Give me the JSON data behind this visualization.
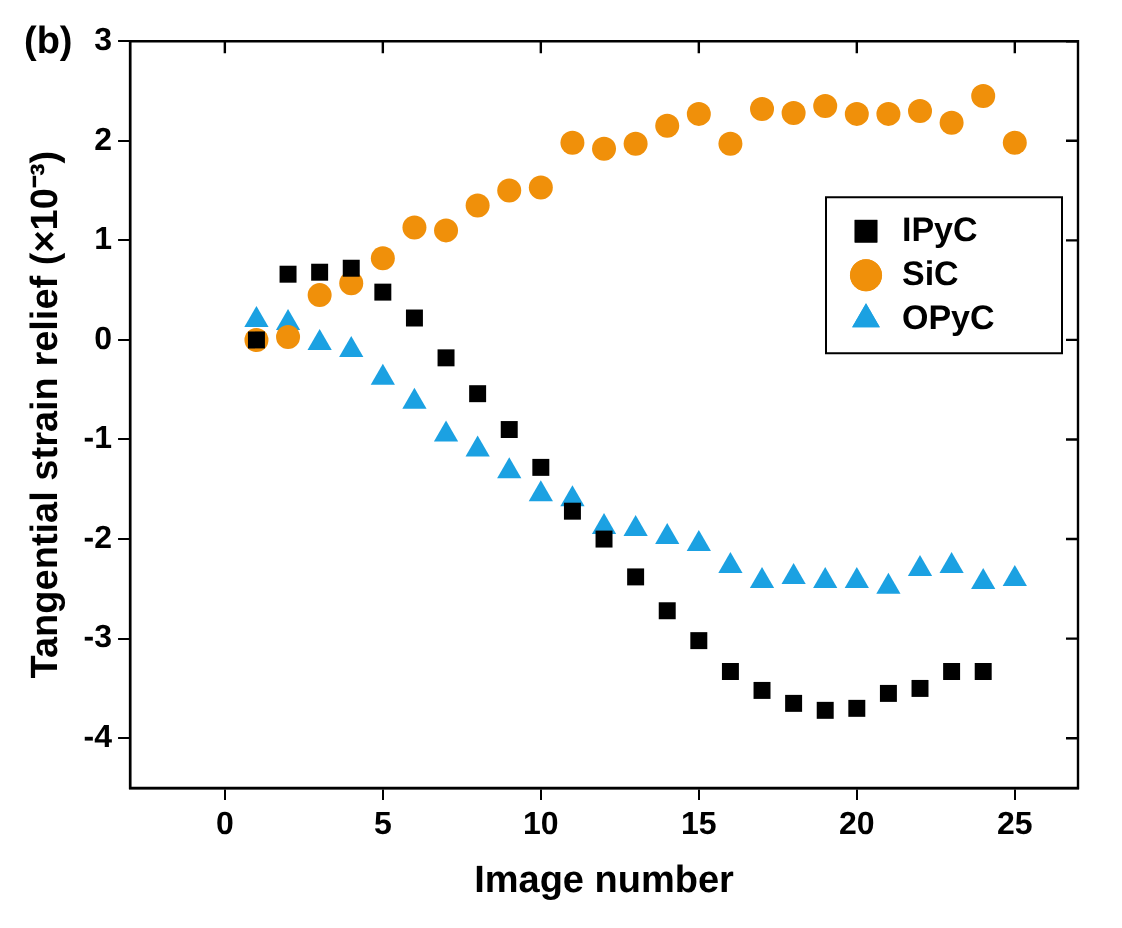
{
  "chart_data": {
    "type": "scatter",
    "xlabel": "Image number",
    "ylabel": "Tangential strain relief (×10⁻³)",
    "annotations": [
      "(b)"
    ],
    "xlim": [
      -3,
      27
    ],
    "xticks": [
      0,
      5,
      10,
      15,
      20,
      25
    ],
    "ylim": [
      -4.5,
      3
    ],
    "yticks": [
      -4,
      -3,
      -2,
      -1,
      0,
      1,
      2,
      3
    ],
    "grid": false,
    "legend": "top right",
    "series": [
      {
        "name": "IPyC",
        "color": "#000000",
        "marker": "square",
        "x": [
          1,
          2,
          3,
          4,
          5,
          6,
          7,
          8,
          9,
          10,
          11,
          12,
          13,
          14,
          15,
          16,
          17,
          18,
          19,
          20,
          21,
          22,
          23,
          24
        ],
        "values": [
          0,
          0.66,
          0.68,
          0.72,
          0.48,
          0.22,
          -0.18,
          -0.54,
          -0.9,
          -1.28,
          -1.72,
          -2.0,
          -2.38,
          -2.72,
          -3.02,
          -3.33,
          -3.52,
          -3.65,
          -3.72,
          -3.7,
          -3.55,
          -3.5,
          -3.33,
          -3.33
        ]
      },
      {
        "name": "SiC",
        "color": "#f0900a",
        "marker": "circle",
        "x": [
          1,
          2,
          3,
          4,
          5,
          6,
          7,
          8,
          9,
          10,
          11,
          12,
          13,
          14,
          15,
          16,
          17,
          18,
          19,
          20,
          21,
          22,
          23,
          24,
          25
        ],
        "values": [
          0,
          0.03,
          0.45,
          0.57,
          0.82,
          1.13,
          1.1,
          1.35,
          1.5,
          1.53,
          1.98,
          1.92,
          1.97,
          2.15,
          2.27,
          1.97,
          2.32,
          2.28,
          2.35,
          2.27,
          2.27,
          2.3,
          2.18,
          2.45,
          1.98
        ]
      },
      {
        "name": "OPyC",
        "color": "#1ba1e2",
        "marker": "triangle",
        "x": [
          1,
          2,
          3,
          4,
          5,
          6,
          7,
          8,
          9,
          10,
          11,
          12,
          13,
          14,
          15,
          16,
          17,
          18,
          19,
          20,
          21,
          22,
          23,
          24,
          25
        ],
        "values": [
          0.2,
          0.17,
          -0.03,
          -0.1,
          -0.38,
          -0.62,
          -0.95,
          -1.1,
          -1.32,
          -1.55,
          -1.6,
          -1.88,
          -1.9,
          -1.98,
          -2.05,
          -2.27,
          -2.42,
          -2.38,
          -2.42,
          -2.42,
          -2.48,
          -2.3,
          -2.27,
          -2.43,
          -2.4
        ]
      }
    ]
  }
}
